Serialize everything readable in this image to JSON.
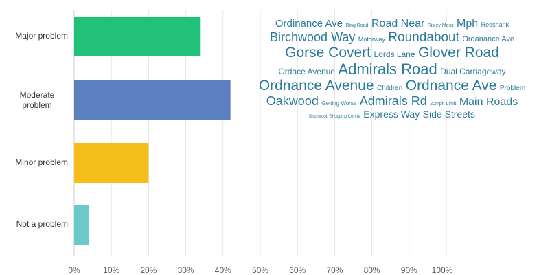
{
  "chart_data": {
    "type": "bar",
    "orientation": "horizontal",
    "categories": [
      "Major problem",
      "Moderate problem",
      "Minor problem",
      "Not a problem"
    ],
    "values": [
      34,
      42,
      20,
      4
    ],
    "unit": "%",
    "xlim": [
      0,
      100
    ],
    "x_ticks": [
      "0%",
      "10%",
      "20%",
      "30%",
      "40%",
      "50%",
      "60%",
      "70%",
      "80%",
      "90%",
      "100%"
    ],
    "grid": true,
    "colors": [
      "#21c17a",
      "#5b7fbf",
      "#f6be1b",
      "#6ac9c9"
    ]
  },
  "word_cloud": {
    "color": "#2b7a9a",
    "words": [
      {
        "text": "Ordinance Ave",
        "size": 15,
        "break": false
      },
      {
        "text": "Ring Road",
        "size": 7,
        "break": false
      },
      {
        "text": "Road Near",
        "size": 16,
        "break": false
      },
      {
        "text": "Risley Moss",
        "size": 7,
        "break": false
      },
      {
        "text": "Mph",
        "size": 16,
        "break": false
      },
      {
        "text": "Redshank",
        "size": 9,
        "break": true
      },
      {
        "text": "Birchwood Way",
        "size": 18,
        "break": false
      },
      {
        "text": "Motorway",
        "size": 9,
        "break": false
      },
      {
        "text": "Roundabout",
        "size": 19,
        "break": false
      },
      {
        "text": "Ordanance Ave",
        "size": 11,
        "break": true
      },
      {
        "text": "Gorse Covert",
        "size": 21,
        "break": false
      },
      {
        "text": "Lords Lane",
        "size": 12,
        "break": false
      },
      {
        "text": "Glover Road",
        "size": 21,
        "break": true
      },
      {
        "text": "Ordace Avenue",
        "size": 12,
        "break": false
      },
      {
        "text": "Admirals Road",
        "size": 22,
        "break": false
      },
      {
        "text": "Dual Carriageway",
        "size": 12,
        "break": true
      },
      {
        "text": "Ordnance Avenue",
        "size": 21,
        "break": false
      },
      {
        "text": "Children",
        "size": 10,
        "break": false
      },
      {
        "text": "Ordnance Ave",
        "size": 21,
        "break": false
      },
      {
        "text": "Problem",
        "size": 10,
        "break": true
      },
      {
        "text": "Oakwood",
        "size": 18,
        "break": false
      },
      {
        "text": "Getting Worse",
        "size": 8,
        "break": false
      },
      {
        "text": "Admirals Rd",
        "size": 18,
        "break": false
      },
      {
        "text": "20mph Limit",
        "size": 7,
        "break": false
      },
      {
        "text": "Main Roads",
        "size": 16,
        "break": true
      },
      {
        "text": "Birchwood Shopping Centre",
        "size": 6,
        "break": false
      },
      {
        "text": "Express Way",
        "size": 14,
        "break": false
      },
      {
        "text": "Side Streets",
        "size": 14,
        "break": false
      }
    ]
  }
}
